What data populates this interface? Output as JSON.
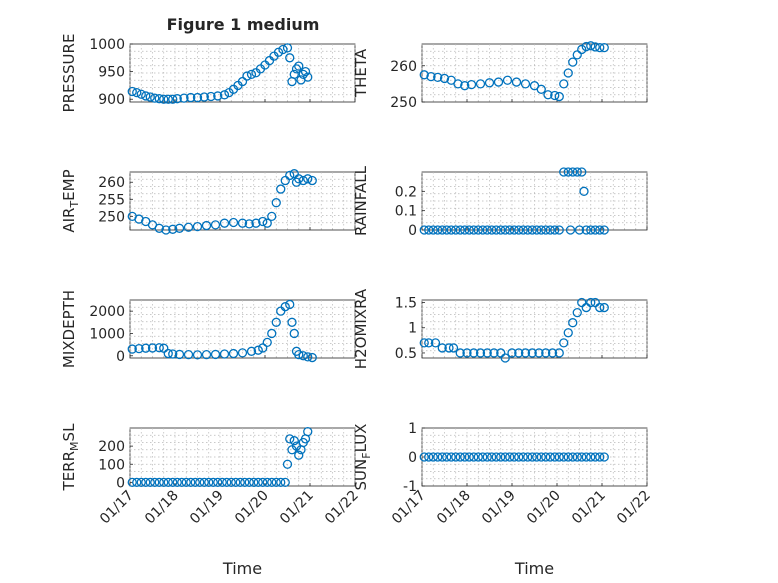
{
  "figure": {
    "title": "Figure 1 medium"
  },
  "chart_data": [
    {
      "type": "scatter",
      "ylabel": "PRESSURE",
      "xlabel": "",
      "xlim": [
        17,
        22
      ],
      "ylim": [
        895,
        1000
      ],
      "yticks": [
        900,
        950,
        1000
      ],
      "ytick_labels": [
        "900",
        "950",
        "1000"
      ],
      "xticks": [
        17,
        18,
        19,
        20,
        21,
        22
      ],
      "xtick_labels": [],
      "grid": true,
      "title": "Figure 1 medium",
      "points": [
        [
          17.05,
          914
        ],
        [
          17.15,
          912
        ],
        [
          17.25,
          909
        ],
        [
          17.35,
          906
        ],
        [
          17.45,
          904
        ],
        [
          17.55,
          902
        ],
        [
          17.65,
          901
        ],
        [
          17.75,
          900
        ],
        [
          17.85,
          900
        ],
        [
          17.95,
          900
        ],
        [
          18.05,
          901
        ],
        [
          18.2,
          902
        ],
        [
          18.35,
          903
        ],
        [
          18.5,
          903
        ],
        [
          18.65,
          904
        ],
        [
          18.8,
          905
        ],
        [
          18.95,
          906
        ],
        [
          19.1,
          908
        ],
        [
          19.2,
          912
        ],
        [
          19.3,
          918
        ],
        [
          19.4,
          925
        ],
        [
          19.5,
          932
        ],
        [
          19.6,
          942
        ],
        [
          19.7,
          945
        ],
        [
          19.8,
          948
        ],
        [
          19.9,
          955
        ],
        [
          20.0,
          962
        ],
        [
          20.1,
          970
        ],
        [
          20.2,
          978
        ],
        [
          20.3,
          985
        ],
        [
          20.4,
          990
        ],
        [
          20.5,
          993
        ],
        [
          20.55,
          975
        ],
        [
          20.6,
          932
        ],
        [
          20.65,
          945
        ],
        [
          20.7,
          955
        ],
        [
          20.75,
          960
        ],
        [
          20.8,
          935
        ],
        [
          20.85,
          945
        ],
        [
          20.9,
          950
        ],
        [
          20.95,
          940
        ]
      ]
    },
    {
      "type": "scatter",
      "ylabel": "THETA",
      "xlabel": "",
      "xlim": [
        17,
        22
      ],
      "ylim": [
        250,
        266
      ],
      "yticks": [
        250,
        260
      ],
      "ytick_labels": [
        "250",
        "260"
      ],
      "xticks": [
        17,
        18,
        19,
        20,
        21,
        22
      ],
      "xtick_labels": [],
      "grid": true,
      "points": [
        [
          17.05,
          257.5
        ],
        [
          17.2,
          257
        ],
        [
          17.35,
          256.8
        ],
        [
          17.5,
          256.5
        ],
        [
          17.65,
          256
        ],
        [
          17.8,
          255
        ],
        [
          17.95,
          254.5
        ],
        [
          18.1,
          254.8
        ],
        [
          18.3,
          255
        ],
        [
          18.5,
          255.3
        ],
        [
          18.7,
          255.5
        ],
        [
          18.9,
          256
        ],
        [
          19.1,
          255.5
        ],
        [
          19.3,
          255
        ],
        [
          19.5,
          254.5
        ],
        [
          19.65,
          253.5
        ],
        [
          19.8,
          252
        ],
        [
          19.95,
          251.8
        ],
        [
          20.05,
          251.5
        ],
        [
          20.15,
          255
        ],
        [
          20.25,
          258
        ],
        [
          20.35,
          261
        ],
        [
          20.45,
          263
        ],
        [
          20.55,
          264.5
        ],
        [
          20.65,
          265.3
        ],
        [
          20.75,
          265.5
        ],
        [
          20.85,
          265.2
        ],
        [
          20.95,
          265
        ],
        [
          21.05,
          265
        ]
      ]
    },
    {
      "type": "scatter",
      "ylabel": "AIR_TEMP",
      "xlabel": "",
      "xlim": [
        17,
        22
      ],
      "ylim": [
        246,
        263
      ],
      "yticks": [
        250,
        255,
        260
      ],
      "ytick_labels": [
        "250",
        "255",
        "260"
      ],
      "xticks": [
        17,
        18,
        19,
        20,
        21,
        22
      ],
      "xtick_labels": [],
      "grid": true,
      "points": [
        [
          17.05,
          250
        ],
        [
          17.2,
          249.2
        ],
        [
          17.35,
          248.5
        ],
        [
          17.5,
          247.5
        ],
        [
          17.65,
          246.5
        ],
        [
          17.8,
          246
        ],
        [
          17.95,
          246.2
        ],
        [
          18.1,
          246.5
        ],
        [
          18.3,
          246.8
        ],
        [
          18.5,
          247
        ],
        [
          18.7,
          247.3
        ],
        [
          18.9,
          247.5
        ],
        [
          19.1,
          248
        ],
        [
          19.3,
          248.2
        ],
        [
          19.5,
          248
        ],
        [
          19.65,
          247.8
        ],
        [
          19.8,
          248
        ],
        [
          19.95,
          248.5
        ],
        [
          20.05,
          248
        ],
        [
          20.15,
          250
        ],
        [
          20.25,
          254
        ],
        [
          20.35,
          258
        ],
        [
          20.45,
          260.5
        ],
        [
          20.55,
          262
        ],
        [
          20.65,
          262.5
        ],
        [
          20.7,
          260
        ],
        [
          20.75,
          261
        ],
        [
          20.85,
          260.5
        ],
        [
          20.95,
          261
        ],
        [
          21.05,
          260.5
        ]
      ]
    },
    {
      "type": "scatter",
      "ylabel": "RAINFALL",
      "xlabel": "",
      "xlim": [
        17,
        22
      ],
      "ylim": [
        0,
        0.3
      ],
      "yticks": [
        0,
        0.1,
        0.2
      ],
      "ytick_labels": [
        "0",
        "0.1",
        "0.2"
      ],
      "xticks": [
        17,
        18,
        19,
        20,
        21,
        22
      ],
      "xtick_labels": [],
      "grid": true,
      "points": [
        [
          17.05,
          0
        ],
        [
          17.15,
          0
        ],
        [
          17.25,
          0
        ],
        [
          17.35,
          0
        ],
        [
          17.45,
          0
        ],
        [
          17.55,
          0
        ],
        [
          17.65,
          0
        ],
        [
          17.75,
          0
        ],
        [
          17.85,
          0
        ],
        [
          17.95,
          0
        ],
        [
          18.05,
          0
        ],
        [
          18.15,
          0
        ],
        [
          18.25,
          0
        ],
        [
          18.35,
          0
        ],
        [
          18.45,
          0
        ],
        [
          18.55,
          0
        ],
        [
          18.65,
          0
        ],
        [
          18.75,
          0
        ],
        [
          18.85,
          0
        ],
        [
          18.95,
          0
        ],
        [
          19.05,
          0
        ],
        [
          19.15,
          0
        ],
        [
          19.25,
          0
        ],
        [
          19.35,
          0
        ],
        [
          19.45,
          0
        ],
        [
          19.55,
          0
        ],
        [
          19.65,
          0
        ],
        [
          19.75,
          0
        ],
        [
          19.85,
          0
        ],
        [
          19.95,
          0
        ],
        [
          20.05,
          0
        ],
        [
          20.15,
          0.3
        ],
        [
          20.25,
          0.3
        ],
        [
          20.3,
          0
        ],
        [
          20.35,
          0.3
        ],
        [
          20.45,
          0.3
        ],
        [
          20.5,
          0
        ],
        [
          20.55,
          0.3
        ],
        [
          20.6,
          0.2
        ],
        [
          20.65,
          0
        ],
        [
          20.75,
          0
        ],
        [
          20.85,
          0
        ],
        [
          20.95,
          0
        ],
        [
          21.05,
          0
        ]
      ]
    },
    {
      "type": "scatter",
      "ylabel": "MIXDEPTH",
      "xlabel": "",
      "xlim": [
        17,
        22
      ],
      "ylim": [
        -100,
        2500
      ],
      "yticks": [
        0,
        1000,
        2000
      ],
      "ytick_labels": [
        "0",
        "1000",
        "2000"
      ],
      "xticks": [
        17,
        18,
        19,
        20,
        21,
        22
      ],
      "xtick_labels": [],
      "grid": true,
      "points": [
        [
          17.05,
          300
        ],
        [
          17.2,
          320
        ],
        [
          17.35,
          340
        ],
        [
          17.5,
          350
        ],
        [
          17.65,
          360
        ],
        [
          17.75,
          340
        ],
        [
          17.85,
          100
        ],
        [
          17.95,
          80
        ],
        [
          18.1,
          60
        ],
        [
          18.3,
          50
        ],
        [
          18.5,
          40
        ],
        [
          18.7,
          50
        ],
        [
          18.9,
          60
        ],
        [
          19.1,
          80
        ],
        [
          19.3,
          100
        ],
        [
          19.5,
          130
        ],
        [
          19.7,
          200
        ],
        [
          19.85,
          250
        ],
        [
          19.95,
          350
        ],
        [
          20.05,
          600
        ],
        [
          20.15,
          1000
        ],
        [
          20.25,
          1500
        ],
        [
          20.35,
          2000
        ],
        [
          20.45,
          2200
        ],
        [
          20.55,
          2300
        ],
        [
          20.6,
          1500
        ],
        [
          20.65,
          1000
        ],
        [
          20.7,
          200
        ],
        [
          20.75,
          50
        ],
        [
          20.85,
          0
        ],
        [
          20.95,
          -50
        ],
        [
          21.05,
          -80
        ]
      ]
    },
    {
      "type": "scatter",
      "ylabel": "H2OMIXRA",
      "xlabel": "",
      "xlim": [
        17,
        22
      ],
      "ylim": [
        0.4,
        1.55
      ],
      "yticks": [
        0.5,
        1,
        1.5
      ],
      "ytick_labels": [
        "0.5",
        "1",
        "1.5"
      ],
      "xticks": [
        17,
        18,
        19,
        20,
        21,
        22
      ],
      "xtick_labels": [],
      "grid": true,
      "points": [
        [
          17.05,
          0.7
        ],
        [
          17.15,
          0.7
        ],
        [
          17.3,
          0.7
        ],
        [
          17.45,
          0.6
        ],
        [
          17.6,
          0.6
        ],
        [
          17.7,
          0.6
        ],
        [
          17.85,
          0.5
        ],
        [
          18.0,
          0.5
        ],
        [
          18.15,
          0.5
        ],
        [
          18.3,
          0.5
        ],
        [
          18.45,
          0.5
        ],
        [
          18.6,
          0.5
        ],
        [
          18.75,
          0.5
        ],
        [
          18.85,
          0.4
        ],
        [
          19.0,
          0.5
        ],
        [
          19.15,
          0.5
        ],
        [
          19.3,
          0.5
        ],
        [
          19.45,
          0.5
        ],
        [
          19.6,
          0.5
        ],
        [
          19.75,
          0.5
        ],
        [
          19.9,
          0.5
        ],
        [
          20.05,
          0.5
        ],
        [
          20.15,
          0.7
        ],
        [
          20.25,
          0.9
        ],
        [
          20.35,
          1.1
        ],
        [
          20.45,
          1.3
        ],
        [
          20.55,
          1.5
        ],
        [
          20.65,
          1.4
        ],
        [
          20.75,
          1.5
        ],
        [
          20.85,
          1.5
        ],
        [
          20.95,
          1.4
        ],
        [
          21.05,
          1.4
        ]
      ]
    },
    {
      "type": "scatter",
      "ylabel": "TERR_MSL",
      "xlabel": "Time",
      "xlim": [
        17,
        22
      ],
      "ylim": [
        -20,
        300
      ],
      "yticks": [
        0,
        100,
        200
      ],
      "ytick_labels": [
        "0",
        "100",
        "200"
      ],
      "xticks": [
        17,
        18,
        19,
        20,
        21,
        22
      ],
      "xtick_labels": [
        "01/17",
        "01/18",
        "01/19",
        "01/20",
        "01/21",
        "01/22"
      ],
      "grid": true,
      "points": [
        [
          17.05,
          0
        ],
        [
          17.15,
          0
        ],
        [
          17.25,
          0
        ],
        [
          17.35,
          0
        ],
        [
          17.45,
          0
        ],
        [
          17.55,
          0
        ],
        [
          17.65,
          0
        ],
        [
          17.75,
          0
        ],
        [
          17.85,
          0
        ],
        [
          17.95,
          0
        ],
        [
          18.05,
          0
        ],
        [
          18.15,
          0
        ],
        [
          18.25,
          0
        ],
        [
          18.35,
          0
        ],
        [
          18.45,
          0
        ],
        [
          18.55,
          0
        ],
        [
          18.65,
          0
        ],
        [
          18.75,
          0
        ],
        [
          18.85,
          0
        ],
        [
          18.95,
          0
        ],
        [
          19.05,
          0
        ],
        [
          19.15,
          0
        ],
        [
          19.25,
          0
        ],
        [
          19.35,
          0
        ],
        [
          19.45,
          0
        ],
        [
          19.55,
          0
        ],
        [
          19.65,
          0
        ],
        [
          19.75,
          0
        ],
        [
          19.85,
          0
        ],
        [
          19.95,
          0
        ],
        [
          20.05,
          0
        ],
        [
          20.15,
          0
        ],
        [
          20.25,
          0
        ],
        [
          20.35,
          0
        ],
        [
          20.45,
          0
        ],
        [
          20.5,
          100
        ],
        [
          20.55,
          240
        ],
        [
          20.6,
          180
        ],
        [
          20.65,
          230
        ],
        [
          20.7,
          200
        ],
        [
          20.75,
          150
        ],
        [
          20.8,
          180
        ],
        [
          20.85,
          220
        ],
        [
          20.9,
          240
        ],
        [
          20.95,
          280
        ]
      ]
    },
    {
      "type": "scatter",
      "ylabel": "SUN_FLUX",
      "xlabel": "Time",
      "xlim": [
        17,
        22
      ],
      "ylim": [
        -1,
        1
      ],
      "yticks": [
        -1,
        0,
        1
      ],
      "ytick_labels": [
        "-1",
        "0",
        "1"
      ],
      "xticks": [
        17,
        18,
        19,
        20,
        21,
        22
      ],
      "xtick_labels": [
        "01/17",
        "01/18",
        "01/19",
        "01/20",
        "01/21",
        "01/22"
      ],
      "grid": true,
      "points": [
        [
          17.05,
          0
        ],
        [
          17.15,
          0
        ],
        [
          17.25,
          0
        ],
        [
          17.35,
          0
        ],
        [
          17.45,
          0
        ],
        [
          17.55,
          0
        ],
        [
          17.65,
          0
        ],
        [
          17.75,
          0
        ],
        [
          17.85,
          0
        ],
        [
          17.95,
          0
        ],
        [
          18.05,
          0
        ],
        [
          18.15,
          0
        ],
        [
          18.25,
          0
        ],
        [
          18.35,
          0
        ],
        [
          18.45,
          0
        ],
        [
          18.55,
          0
        ],
        [
          18.65,
          0
        ],
        [
          18.75,
          0
        ],
        [
          18.85,
          0
        ],
        [
          18.95,
          0
        ],
        [
          19.05,
          0
        ],
        [
          19.15,
          0
        ],
        [
          19.25,
          0
        ],
        [
          19.35,
          0
        ],
        [
          19.45,
          0
        ],
        [
          19.55,
          0
        ],
        [
          19.65,
          0
        ],
        [
          19.75,
          0
        ],
        [
          19.85,
          0
        ],
        [
          19.95,
          0
        ],
        [
          20.05,
          0
        ],
        [
          20.15,
          0
        ],
        [
          20.25,
          0
        ],
        [
          20.35,
          0
        ],
        [
          20.45,
          0
        ],
        [
          20.55,
          0
        ],
        [
          20.65,
          0
        ],
        [
          20.75,
          0
        ],
        [
          20.85,
          0
        ],
        [
          20.95,
          0
        ],
        [
          21.05,
          0
        ]
      ]
    }
  ]
}
